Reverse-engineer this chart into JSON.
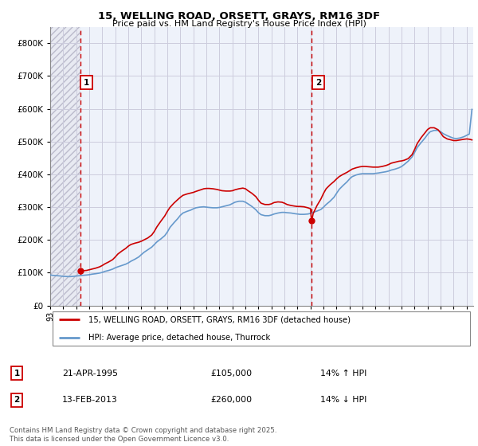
{
  "title": "15, WELLING ROAD, ORSETT, GRAYS, RM16 3DF",
  "subtitle": "Price paid vs. HM Land Registry's House Price Index (HPI)",
  "legend_label1": "15, WELLING ROAD, ORSETT, GRAYS, RM16 3DF (detached house)",
  "legend_label2": "HPI: Average price, detached house, Thurrock",
  "marker1_date": "21-APR-1995",
  "marker1_price": "£105,000",
  "marker1_hpi": "14% ↑ HPI",
  "marker2_date": "13-FEB-2013",
  "marker2_price": "£260,000",
  "marker2_hpi": "14% ↓ HPI",
  "copyright": "Contains HM Land Registry data © Crown copyright and database right 2025.\nThis data is licensed under the Open Government Licence v3.0.",
  "color_line1": "#cc0000",
  "color_line2": "#6699cc",
  "color_vline": "#cc0000",
  "ylim": [
    0,
    850000
  ],
  "yticks": [
    0,
    100000,
    200000,
    300000,
    400000,
    500000,
    600000,
    700000,
    800000
  ],
  "xlim_start": 1993.0,
  "xlim_end": 2025.5,
  "marker1_x": 1995.3,
  "marker2_x": 2013.1,
  "marker1_y": 105000,
  "marker2_y": 260000,
  "hpi_line": [
    [
      1993.0,
      93000
    ],
    [
      1993.2,
      92000
    ],
    [
      1993.5,
      91000
    ],
    [
      1993.8,
      90000
    ],
    [
      1994.0,
      89000
    ],
    [
      1994.2,
      88500
    ],
    [
      1994.5,
      88000
    ],
    [
      1994.8,
      89000
    ],
    [
      1995.0,
      90000
    ],
    [
      1995.3,
      91000
    ],
    [
      1995.5,
      92000
    ],
    [
      1995.8,
      93000
    ],
    [
      1996.0,
      94000
    ],
    [
      1996.2,
      95500
    ],
    [
      1996.5,
      97000
    ],
    [
      1996.8,
      99000
    ],
    [
      1997.0,
      101000
    ],
    [
      1997.2,
      104000
    ],
    [
      1997.5,
      107000
    ],
    [
      1997.8,
      111000
    ],
    [
      1998.0,
      115000
    ],
    [
      1998.2,
      118000
    ],
    [
      1998.5,
      122000
    ],
    [
      1998.8,
      126000
    ],
    [
      1999.0,
      130000
    ],
    [
      1999.2,
      135000
    ],
    [
      1999.5,
      141000
    ],
    [
      1999.8,
      148000
    ],
    [
      2000.0,
      155000
    ],
    [
      2000.2,
      162000
    ],
    [
      2000.5,
      170000
    ],
    [
      2000.8,
      178000
    ],
    [
      2001.0,
      186000
    ],
    [
      2001.2,
      194000
    ],
    [
      2001.5,
      203000
    ],
    [
      2001.8,
      213000
    ],
    [
      2002.0,
      224000
    ],
    [
      2002.2,
      238000
    ],
    [
      2002.5,
      252000
    ],
    [
      2002.8,
      265000
    ],
    [
      2003.0,
      275000
    ],
    [
      2003.2,
      282000
    ],
    [
      2003.5,
      287000
    ],
    [
      2003.8,
      291000
    ],
    [
      2004.0,
      295000
    ],
    [
      2004.2,
      298000
    ],
    [
      2004.5,
      300000
    ],
    [
      2004.8,
      301000
    ],
    [
      2005.0,
      300000
    ],
    [
      2005.2,
      299000
    ],
    [
      2005.5,
      298000
    ],
    [
      2005.8,
      298000
    ],
    [
      2006.0,
      299000
    ],
    [
      2006.2,
      301000
    ],
    [
      2006.5,
      304000
    ],
    [
      2006.8,
      307000
    ],
    [
      2007.0,
      311000
    ],
    [
      2007.2,
      315000
    ],
    [
      2007.5,
      318000
    ],
    [
      2007.8,
      318000
    ],
    [
      2008.0,
      315000
    ],
    [
      2008.2,
      310000
    ],
    [
      2008.5,
      302000
    ],
    [
      2008.8,
      292000
    ],
    [
      2009.0,
      283000
    ],
    [
      2009.2,
      277000
    ],
    [
      2009.5,
      274000
    ],
    [
      2009.8,
      274000
    ],
    [
      2010.0,
      276000
    ],
    [
      2010.2,
      279000
    ],
    [
      2010.5,
      282000
    ],
    [
      2010.8,
      284000
    ],
    [
      2011.0,
      284000
    ],
    [
      2011.2,
      283000
    ],
    [
      2011.5,
      282000
    ],
    [
      2011.8,
      280000
    ],
    [
      2012.0,
      279000
    ],
    [
      2012.2,
      278000
    ],
    [
      2012.5,
      278000
    ],
    [
      2012.8,
      279000
    ],
    [
      2013.0,
      281000
    ],
    [
      2013.1,
      282000
    ],
    [
      2013.2,
      284000
    ],
    [
      2013.5,
      288000
    ],
    [
      2013.8,
      293000
    ],
    [
      2014.0,
      300000
    ],
    [
      2014.2,
      308000
    ],
    [
      2014.5,
      318000
    ],
    [
      2014.8,
      330000
    ],
    [
      2015.0,
      342000
    ],
    [
      2015.2,
      354000
    ],
    [
      2015.5,
      366000
    ],
    [
      2015.8,
      377000
    ],
    [
      2016.0,
      386000
    ],
    [
      2016.2,
      393000
    ],
    [
      2016.5,
      398000
    ],
    [
      2016.8,
      401000
    ],
    [
      2017.0,
      402000
    ],
    [
      2017.2,
      402000
    ],
    [
      2017.5,
      402000
    ],
    [
      2017.8,
      402000
    ],
    [
      2018.0,
      403000
    ],
    [
      2018.2,
      404000
    ],
    [
      2018.5,
      406000
    ],
    [
      2018.8,
      408000
    ],
    [
      2019.0,
      410000
    ],
    [
      2019.2,
      413000
    ],
    [
      2019.5,
      416000
    ],
    [
      2019.8,
      420000
    ],
    [
      2020.0,
      424000
    ],
    [
      2020.2,
      430000
    ],
    [
      2020.5,
      440000
    ],
    [
      2020.8,
      453000
    ],
    [
      2021.0,
      467000
    ],
    [
      2021.2,
      482000
    ],
    [
      2021.5,
      497000
    ],
    [
      2021.8,
      511000
    ],
    [
      2022.0,
      522000
    ],
    [
      2022.2,
      530000
    ],
    [
      2022.5,
      534000
    ],
    [
      2022.8,
      534000
    ],
    [
      2023.0,
      530000
    ],
    [
      2023.2,
      524000
    ],
    [
      2023.5,
      518000
    ],
    [
      2023.8,
      513000
    ],
    [
      2024.0,
      510000
    ],
    [
      2024.2,
      509000
    ],
    [
      2024.5,
      511000
    ],
    [
      2024.8,
      515000
    ],
    [
      2025.0,
      519000
    ],
    [
      2025.2,
      523000
    ],
    [
      2025.4,
      598000
    ]
  ],
  "price_line": [
    [
      1995.3,
      105000
    ],
    [
      1995.5,
      106000
    ],
    [
      1995.8,
      107000
    ],
    [
      1996.0,
      109000
    ],
    [
      1996.2,
      111000
    ],
    [
      1996.5,
      114000
    ],
    [
      1996.8,
      118000
    ],
    [
      1997.0,
      122000
    ],
    [
      1997.2,
      127000
    ],
    [
      1997.5,
      133000
    ],
    [
      1997.8,
      140000
    ],
    [
      1998.0,
      148000
    ],
    [
      1998.2,
      157000
    ],
    [
      1998.5,
      166000
    ],
    [
      1998.8,
      174000
    ],
    [
      1999.0,
      181000
    ],
    [
      1999.2,
      186000
    ],
    [
      1999.5,
      190000
    ],
    [
      1999.8,
      193000
    ],
    [
      2000.0,
      196000
    ],
    [
      2000.2,
      200000
    ],
    [
      2000.5,
      206000
    ],
    [
      2000.8,
      215000
    ],
    [
      2001.0,
      226000
    ],
    [
      2001.2,
      240000
    ],
    [
      2001.5,
      257000
    ],
    [
      2001.8,
      273000
    ],
    [
      2002.0,
      287000
    ],
    [
      2002.2,
      299000
    ],
    [
      2002.5,
      312000
    ],
    [
      2002.8,
      323000
    ],
    [
      2003.0,
      330000
    ],
    [
      2003.2,
      336000
    ],
    [
      2003.5,
      340000
    ],
    [
      2003.8,
      343000
    ],
    [
      2004.0,
      345000
    ],
    [
      2004.2,
      348000
    ],
    [
      2004.5,
      352000
    ],
    [
      2004.8,
      356000
    ],
    [
      2005.0,
      357000
    ],
    [
      2005.2,
      357000
    ],
    [
      2005.5,
      356000
    ],
    [
      2005.8,
      354000
    ],
    [
      2006.0,
      352000
    ],
    [
      2006.2,
      350000
    ],
    [
      2006.5,
      349000
    ],
    [
      2006.8,
      349000
    ],
    [
      2007.0,
      350000
    ],
    [
      2007.2,
      353000
    ],
    [
      2007.5,
      356000
    ],
    [
      2007.8,
      358000
    ],
    [
      2008.0,
      356000
    ],
    [
      2008.2,
      350000
    ],
    [
      2008.5,
      342000
    ],
    [
      2008.8,
      332000
    ],
    [
      2009.0,
      321000
    ],
    [
      2009.2,
      312000
    ],
    [
      2009.5,
      308000
    ],
    [
      2009.8,
      308000
    ],
    [
      2010.0,
      310000
    ],
    [
      2010.2,
      314000
    ],
    [
      2010.5,
      316000
    ],
    [
      2010.8,
      315000
    ],
    [
      2011.0,
      312000
    ],
    [
      2011.2,
      308000
    ],
    [
      2011.5,
      305000
    ],
    [
      2011.8,
      303000
    ],
    [
      2012.0,
      302000
    ],
    [
      2012.2,
      302000
    ],
    [
      2012.5,
      301000
    ],
    [
      2012.8,
      298000
    ],
    [
      2013.0,
      295000
    ],
    [
      2013.05,
      270000
    ],
    [
      2013.1,
      260000
    ],
    [
      2013.2,
      280000
    ],
    [
      2013.5,
      305000
    ],
    [
      2013.8,
      325000
    ],
    [
      2014.0,
      342000
    ],
    [
      2014.2,
      356000
    ],
    [
      2014.5,
      368000
    ],
    [
      2014.8,
      378000
    ],
    [
      2015.0,
      386000
    ],
    [
      2015.2,
      393000
    ],
    [
      2015.5,
      400000
    ],
    [
      2015.8,
      406000
    ],
    [
      2016.0,
      411000
    ],
    [
      2016.2,
      416000
    ],
    [
      2016.5,
      420000
    ],
    [
      2016.8,
      423000
    ],
    [
      2017.0,
      424000
    ],
    [
      2017.2,
      424000
    ],
    [
      2017.5,
      423000
    ],
    [
      2017.8,
      422000
    ],
    [
      2018.0,
      422000
    ],
    [
      2018.2,
      422000
    ],
    [
      2018.5,
      424000
    ],
    [
      2018.8,
      427000
    ],
    [
      2019.0,
      430000
    ],
    [
      2019.2,
      434000
    ],
    [
      2019.5,
      437000
    ],
    [
      2019.8,
      440000
    ],
    [
      2020.0,
      441000
    ],
    [
      2020.2,
      443000
    ],
    [
      2020.5,
      448000
    ],
    [
      2020.8,
      460000
    ],
    [
      2021.0,
      476000
    ],
    [
      2021.2,
      494000
    ],
    [
      2021.5,
      512000
    ],
    [
      2021.8,
      527000
    ],
    [
      2022.0,
      537000
    ],
    [
      2022.2,
      542000
    ],
    [
      2022.5,
      542000
    ],
    [
      2022.8,
      536000
    ],
    [
      2023.0,
      526000
    ],
    [
      2023.2,
      515000
    ],
    [
      2023.5,
      508000
    ],
    [
      2023.8,
      505000
    ],
    [
      2024.0,
      503000
    ],
    [
      2024.2,
      503000
    ],
    [
      2024.5,
      505000
    ],
    [
      2024.8,
      507000
    ],
    [
      2025.0,
      508000
    ],
    [
      2025.2,
      507000
    ],
    [
      2025.4,
      505000
    ]
  ]
}
